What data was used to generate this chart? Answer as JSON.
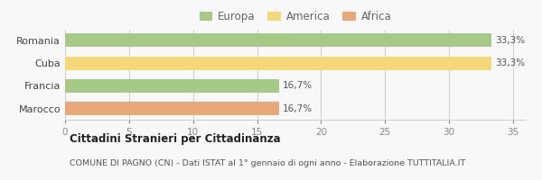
{
  "categories": [
    "Marocco",
    "Francia",
    "Cuba",
    "Romania"
  ],
  "values": [
    16.7,
    16.7,
    33.3,
    33.3
  ],
  "bar_colors": [
    "#e8a878",
    "#a8c888",
    "#f5d87a",
    "#a8c888"
  ],
  "bar_labels": [
    "16,7%",
    "16,7%",
    "33,3%",
    "33,3%"
  ],
  "legend_labels": [
    "Europa",
    "America",
    "Africa"
  ],
  "legend_colors": [
    "#a8c888",
    "#f5d87a",
    "#e8a878"
  ],
  "xlim": [
    0,
    36
  ],
  "xticks": [
    0,
    5,
    10,
    15,
    20,
    25,
    30,
    35
  ],
  "title_bold": "Cittadini Stranieri per Cittadinanza",
  "subtitle": "COMUNE DI PAGNO (CN) - Dati ISTAT al 1° gennaio di ogni anno - Elaborazione TUTTITALIA.IT",
  "background_color": "#f8f8f8",
  "plot_bg_color": "#f8f8f8"
}
